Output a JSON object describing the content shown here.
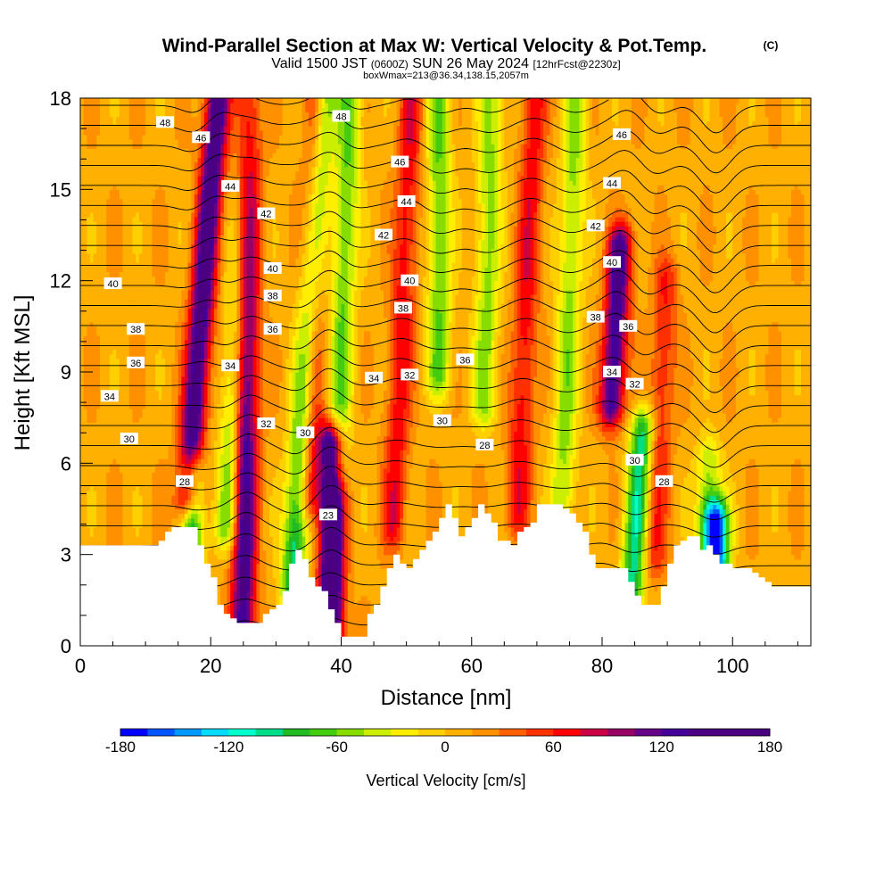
{
  "title": {
    "main": "Wind-Parallel Section at Max W: Vertical Velocity & Pot.Temp.",
    "copyright": "(C)",
    "valid_prefix": "Valid 1500 JST",
    "valid_utc": "(0600Z)",
    "valid_date": "SUN 26 May 2024",
    "forecast": "[12hrFcst@2230z]",
    "box_info": "boxWmax=213@36.34,138.15,2057m"
  },
  "chart_data": {
    "type": "heatmap",
    "xlabel": "Distance [nm]",
    "ylabel": "Height [Kft MSL]",
    "xlim": [
      0,
      112
    ],
    "ylim": [
      0,
      18
    ],
    "x_ticks": [
      0,
      20,
      40,
      60,
      80,
      100
    ],
    "y_ticks": [
      0,
      3,
      6,
      9,
      12,
      15,
      18
    ],
    "colorbar": {
      "label": "Vertical Velocity [cm/s]",
      "min": -180,
      "max": 180,
      "step": 15,
      "ticks": [
        -180,
        -120,
        -60,
        0,
        60,
        120,
        180
      ],
      "colors": [
        "#0000ff",
        "#0055ff",
        "#0099ff",
        "#00ddff",
        "#00ffcc",
        "#00dd88",
        "#22bb22",
        "#44cc11",
        "#88dd00",
        "#ccee00",
        "#ffee00",
        "#ffd000",
        "#ffb000",
        "#ff9000",
        "#ff6000",
        "#ff3000",
        "#ff0000",
        "#cc0044",
        "#990066",
        "#660088",
        "#440099",
        "#4b0082",
        "#4b0082",
        "#4b0082"
      ]
    },
    "terrain": [
      [
        0,
        3.3
      ],
      [
        11,
        3.3
      ],
      [
        14,
        3.9
      ],
      [
        17,
        3.9
      ],
      [
        18,
        3.3
      ],
      [
        20,
        2.2
      ],
      [
        21,
        1.4
      ],
      [
        22,
        1.0
      ],
      [
        24,
        0.7
      ],
      [
        27,
        0.7
      ],
      [
        28,
        1.0
      ],
      [
        30,
        1.4
      ],
      [
        31,
        1.8
      ],
      [
        32,
        2.7
      ],
      [
        33,
        3.2
      ],
      [
        34,
        2.9
      ],
      [
        35,
        2.2
      ],
      [
        37,
        1.8
      ],
      [
        39,
        0.7
      ],
      [
        40,
        0.3
      ],
      [
        43,
        0.3
      ],
      [
        44,
        1.1
      ],
      [
        45,
        1.4
      ],
      [
        47,
        2.5
      ],
      [
        48,
        3.0
      ],
      [
        50,
        2.5
      ],
      [
        52,
        3.1
      ],
      [
        54,
        3.7
      ],
      [
        56,
        4.6
      ],
      [
        57,
        4.2
      ],
      [
        58,
        3.6
      ],
      [
        60,
        4.2
      ],
      [
        61,
        4.6
      ],
      [
        63,
        4.1
      ],
      [
        64,
        3.5
      ],
      [
        66,
        3.3
      ],
      [
        67,
        3.8
      ],
      [
        69,
        4.1
      ],
      [
        70,
        4.6
      ],
      [
        73,
        4.6
      ],
      [
        75,
        4.3
      ],
      [
        77,
        3.7
      ],
      [
        78,
        3.0
      ],
      [
        79,
        2.6
      ],
      [
        81,
        2.6
      ],
      [
        83,
        2.6
      ],
      [
        85,
        1.7
      ],
      [
        86,
        1.4
      ],
      [
        88,
        1.4
      ],
      [
        89,
        2.0
      ],
      [
        90,
        2.7
      ],
      [
        91,
        3.3
      ],
      [
        92,
        3.5
      ],
      [
        94,
        3.6
      ],
      [
        95,
        3.1
      ],
      [
        96,
        3.3
      ],
      [
        98,
        2.7
      ],
      [
        100,
        2.6
      ],
      [
        102,
        2.5
      ],
      [
        104,
        2.2
      ],
      [
        106,
        2.0
      ],
      [
        112,
        2.0
      ]
    ],
    "vertical_velocity_features": [
      {
        "x": 16.5,
        "z_min": 5.0,
        "z_max": 18,
        "w": 140,
        "tilt": 0.35
      },
      {
        "x": 17.0,
        "z_min": 3.0,
        "z_max": 5.5,
        "w": -110,
        "tilt": 0.1
      },
      {
        "x": 22.5,
        "z_min": 4.0,
        "z_max": 18,
        "w": -70,
        "tilt": 0.25
      },
      {
        "x": 25.0,
        "z_min": 0.7,
        "z_max": 18,
        "w": 130,
        "tilt": 0.05
      },
      {
        "x": 32.5,
        "z_min": 2.0,
        "z_max": 18,
        "w": -110,
        "tilt": 0.3
      },
      {
        "x": 35.0,
        "z_min": 5.0,
        "z_max": 18,
        "w": 80,
        "tilt": 0.1
      },
      {
        "x": 38.5,
        "z_min": 0.4,
        "z_max": 6.5,
        "w": 180,
        "tilt": 0.0
      },
      {
        "x": 39.5,
        "z_min": 6.0,
        "z_max": 18,
        "w": -70,
        "tilt": 0.15
      },
      {
        "x": 48.0,
        "z_min": 4.0,
        "z_max": 18,
        "w": 60,
        "tilt": 0.2
      },
      {
        "x": 55.0,
        "z_min": 9.0,
        "z_max": 18,
        "w": -70,
        "tilt": 0.0
      },
      {
        "x": 62.0,
        "z_min": 8.0,
        "z_max": 18,
        "w": -60,
        "tilt": 0.1
      },
      {
        "x": 67.0,
        "z_min": 4.5,
        "z_max": 18,
        "w": 60,
        "tilt": 0.2
      },
      {
        "x": 74.0,
        "z_min": 5.0,
        "z_max": 18,
        "w": -60,
        "tilt": 0.15
      },
      {
        "x": 81.5,
        "z_min": 8.0,
        "z_max": 13.0,
        "w": 130,
        "tilt": 0.25
      },
      {
        "x": 84.5,
        "z_min": 1.5,
        "z_max": 7.0,
        "w": -110,
        "tilt": 0.3
      },
      {
        "x": 88.0,
        "z_min": 3.0,
        "z_max": 12.0,
        "w": 50,
        "tilt": 0.2
      },
      {
        "x": 96.0,
        "z_min": 3.0,
        "z_max": 6.0,
        "w": -60,
        "tilt": 0.1
      },
      {
        "x": 97.5,
        "z_min": 3.0,
        "z_max": 4.0,
        "w": -170,
        "tilt": 0.0
      }
    ],
    "theta_contours": {
      "min": 23,
      "max": 49,
      "interval": 1,
      "labels": [
        {
          "text": "48",
          "x": 13,
          "z": 17.2
        },
        {
          "text": "46",
          "x": 18.5,
          "z": 16.7
        },
        {
          "text": "44",
          "x": 23,
          "z": 15.1
        },
        {
          "text": "42",
          "x": 28.5,
          "z": 14.2
        },
        {
          "text": "40",
          "x": 29.5,
          "z": 12.4
        },
        {
          "text": "38",
          "x": 29.5,
          "z": 11.5
        },
        {
          "text": "36",
          "x": 29.5,
          "z": 10.4
        },
        {
          "text": "34",
          "x": 23,
          "z": 9.2
        },
        {
          "text": "32",
          "x": 28.5,
          "z": 7.3
        },
        {
          "text": "30",
          "x": 34.5,
          "z": 7.0
        },
        {
          "text": "28",
          "x": 16,
          "z": 5.4
        },
        {
          "text": "23",
          "x": 38,
          "z": 4.3
        },
        {
          "text": "48",
          "x": 40,
          "z": 17.4
        },
        {
          "text": "46",
          "x": 49,
          "z": 15.9
        },
        {
          "text": "44",
          "x": 50,
          "z": 14.6
        },
        {
          "text": "42",
          "x": 46.5,
          "z": 13.5
        },
        {
          "text": "40",
          "x": 50.5,
          "z": 12.0
        },
        {
          "text": "38",
          "x": 49.5,
          "z": 11.1
        },
        {
          "text": "36",
          "x": 59,
          "z": 9.4
        },
        {
          "text": "34",
          "x": 45,
          "z": 8.8
        },
        {
          "text": "32",
          "x": 50.5,
          "z": 8.9
        },
        {
          "text": "30",
          "x": 55.5,
          "z": 7.4
        },
        {
          "text": "28",
          "x": 62,
          "z": 6.6
        },
        {
          "text": "46",
          "x": 83,
          "z": 16.8
        },
        {
          "text": "44",
          "x": 81.5,
          "z": 15.2
        },
        {
          "text": "42",
          "x": 79,
          "z": 13.8
        },
        {
          "text": "40",
          "x": 81.5,
          "z": 12.6
        },
        {
          "text": "38",
          "x": 79,
          "z": 10.8
        },
        {
          "text": "36",
          "x": 84,
          "z": 10.5
        },
        {
          "text": "34",
          "x": 81.5,
          "z": 9.0
        },
        {
          "text": "32",
          "x": 85,
          "z": 8.6
        },
        {
          "text": "30",
          "x": 85,
          "z": 6.1
        },
        {
          "text": "28",
          "x": 89.5,
          "z": 5.4
        },
        {
          "text": "40",
          "x": 5,
          "z": 11.9
        },
        {
          "text": "38",
          "x": 8.5,
          "z": 10.4
        },
        {
          "text": "36",
          "x": 8.5,
          "z": 9.3
        },
        {
          "text": "34",
          "x": 4.5,
          "z": 8.2
        },
        {
          "text": "30",
          "x": 7.5,
          "z": 6.8
        }
      ]
    }
  }
}
